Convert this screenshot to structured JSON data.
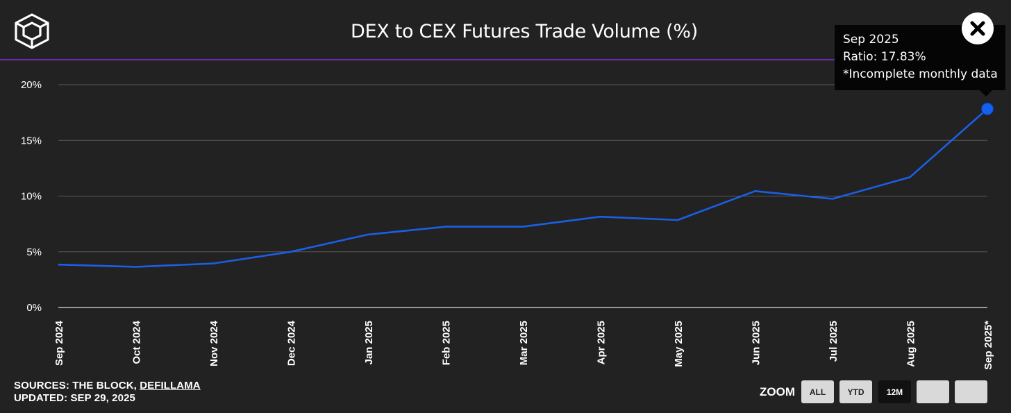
{
  "title": "DEX to CEX Futures Trade Volume (%)",
  "colors": {
    "background": "#222222",
    "line": "#1a5fe6",
    "header_rule": "#8a2be2",
    "grid": "#5a5a5a",
    "axis": "#e0e0e0"
  },
  "tooltip": {
    "month": "Sep 2025",
    "ratio": "Ratio: 17.83%",
    "note": "*Incomplete monthly data"
  },
  "footer": {
    "sources_prefix": "SOURCES: THE BLOCK, ",
    "sources_link": "DEFILLAMA",
    "updated": "UPDATED: SEP 29, 2025"
  },
  "zoom": {
    "label": "ZOOM",
    "buttons": [
      {
        "label": "ALL",
        "active": false
      },
      {
        "label": "YTD",
        "active": false
      },
      {
        "label": "12M",
        "active": true
      },
      {
        "label": "",
        "active": false
      },
      {
        "label": "",
        "active": false
      }
    ]
  },
  "chart_data": {
    "type": "line",
    "title": "DEX to CEX Futures Trade Volume (%)",
    "xlabel": "",
    "ylabel": "",
    "ylim": [
      0,
      20
    ],
    "yticks": [
      0,
      5,
      10,
      15,
      20
    ],
    "ytick_labels": [
      "0%",
      "5%",
      "10%",
      "15%",
      "20%"
    ],
    "grid": true,
    "categories": [
      "Sep 2024",
      "Oct 2024",
      "Nov 2024",
      "Dec 2024",
      "Jan 2025",
      "Feb 2025",
      "Mar 2025",
      "Apr 2025",
      "May 2025",
      "Jun 2025",
      "Jul 2025",
      "Aug 2025",
      "Sep 2025*"
    ],
    "series": [
      {
        "name": "Ratio",
        "values": [
          3.85,
          3.65,
          3.95,
          5.0,
          6.55,
          7.25,
          7.25,
          8.15,
          7.85,
          10.45,
          9.75,
          11.7,
          17.83
        ]
      }
    ],
    "highlighted_point": "Sep 2025*"
  }
}
